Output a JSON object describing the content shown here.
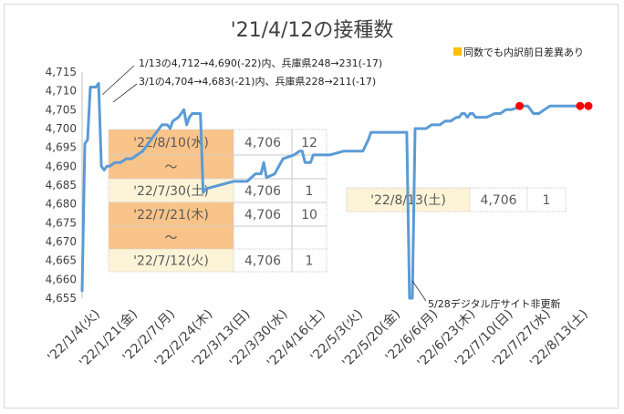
{
  "chart_data": {
    "type": "line",
    "title": "'21/4/12の接種数",
    "xlabel": "",
    "ylabel": "",
    "ylim": [
      4655,
      4715
    ],
    "yticks": [
      4655,
      4660,
      4665,
      4670,
      4675,
      4680,
      4685,
      4690,
      4695,
      4700,
      4705,
      4710,
      4715
    ],
    "x_tick_labels": [
      "'22/1/4(火)",
      "'22/1/21(金)",
      "'22/2/7(月)",
      "'22/2/24(木)",
      "'22/3/13(日)",
      "'22/3/30(水)",
      "'22/4/16(土)",
      "'22/5/3(火)",
      "'22/5/20(金)",
      "'22/6/6(月)",
      "'22/6/23(木)",
      "'22/7/10(日)",
      "'22/7/27(水)",
      "'22/8/13(土)"
    ],
    "series": [
      {
        "name": "",
        "color": "#5b9bd5",
        "points": [
          [
            0,
            4657
          ],
          [
            1,
            4696
          ],
          [
            2,
            4697
          ],
          [
            3,
            4711
          ],
          [
            4,
            4711
          ],
          [
            5,
            4711
          ],
          [
            6,
            4712
          ],
          [
            7,
            4690
          ],
          [
            8,
            4689
          ],
          [
            9,
            4690
          ],
          [
            10,
            4690
          ],
          [
            12,
            4691
          ],
          [
            14,
            4691
          ],
          [
            16,
            4692
          ],
          [
            18,
            4692
          ],
          [
            20,
            4693
          ],
          [
            22,
            4694
          ],
          [
            24,
            4696
          ],
          [
            26,
            4698
          ],
          [
            28,
            4700
          ],
          [
            29,
            4701
          ],
          [
            31,
            4701
          ],
          [
            32,
            4700
          ],
          [
            33,
            4702
          ],
          [
            35,
            4703
          ],
          [
            36,
            4704
          ],
          [
            37,
            4705
          ],
          [
            38,
            4701
          ],
          [
            39,
            4703
          ],
          [
            40,
            4704
          ],
          [
            42,
            4704
          ],
          [
            43,
            4704
          ],
          [
            44,
            4683
          ],
          [
            45,
            4684
          ],
          [
            50,
            4685
          ],
          [
            55,
            4686
          ],
          [
            60,
            4686
          ],
          [
            63,
            4688
          ],
          [
            65,
            4688
          ],
          [
            66,
            4691
          ],
          [
            67,
            4687
          ],
          [
            70,
            4688
          ],
          [
            73,
            4692
          ],
          [
            77,
            4693
          ],
          [
            79,
            4694
          ],
          [
            80,
            4694
          ],
          [
            81,
            4691
          ],
          [
            83,
            4691
          ],
          [
            84,
            4693
          ],
          [
            90,
            4693
          ],
          [
            95,
            4694
          ],
          [
            100,
            4694
          ],
          [
            102,
            4694
          ],
          [
            104,
            4697
          ],
          [
            105,
            4699
          ],
          [
            110,
            4699
          ],
          [
            115,
            4699
          ],
          [
            118,
            4699
          ],
          [
            119,
            4655
          ],
          [
            120,
            4655
          ],
          [
            121,
            4700
          ],
          [
            123,
            4700
          ],
          [
            125,
            4700
          ],
          [
            127,
            4701
          ],
          [
            130,
            4701
          ],
          [
            132,
            4702
          ],
          [
            134,
            4702
          ],
          [
            136,
            4703
          ],
          [
            137,
            4703
          ],
          [
            138,
            4704
          ],
          [
            139,
            4704
          ],
          [
            140,
            4703
          ],
          [
            141,
            4704
          ],
          [
            142,
            4704
          ],
          [
            143,
            4703
          ],
          [
            147,
            4703
          ],
          [
            150,
            4704
          ],
          [
            152,
            4704
          ],
          [
            154,
            4705
          ],
          [
            156,
            4705
          ],
          [
            160,
            4706
          ],
          [
            162,
            4706
          ],
          [
            164,
            4704
          ],
          [
            166,
            4704
          ],
          [
            168,
            4705
          ],
          [
            170,
            4706
          ],
          [
            173,
            4706
          ],
          [
            176,
            4706
          ],
          [
            180,
            4706
          ],
          [
            182,
            4706
          ]
        ],
        "markers": [
          [
            159,
            4706
          ],
          [
            181,
            4706
          ],
          [
            184,
            4706
          ]
        ],
        "marker_color": "#ff0000"
      }
    ],
    "legend": {
      "label": "同数でも内訳前日差異あり",
      "color": "#ffc000",
      "placement": "top-right"
    },
    "annotations": {
      "note1": "1/13の4,712→4,690(-22)内、兵庫県248→231(-17)",
      "note2": "3/1の4,704→4,683(-21)内、兵庫県228→211(-17)",
      "note3": "5/28デジタル庁サイト非更新"
    },
    "table_rows": [
      {
        "date": "'22/8/10(水)",
        "value": "4,706",
        "diff": "12",
        "highlight": true
      },
      {
        "date": "～",
        "value": "",
        "diff": "",
        "highlight": true
      },
      {
        "date": "'22/7/30(土)",
        "value": "4,706",
        "diff": "1",
        "highlight": false
      },
      {
        "date": "'22/7/21(木)",
        "value": "4,706",
        "diff": "10",
        "highlight": true
      },
      {
        "date": "～",
        "value": "",
        "diff": "",
        "highlight": true
      },
      {
        "date": "'22/7/12(火)",
        "value": "4,706",
        "diff": "1",
        "highlight": false
      }
    ],
    "side_box": {
      "date": "'22/8/13(土)",
      "value": "4,706",
      "diff": "1"
    }
  }
}
